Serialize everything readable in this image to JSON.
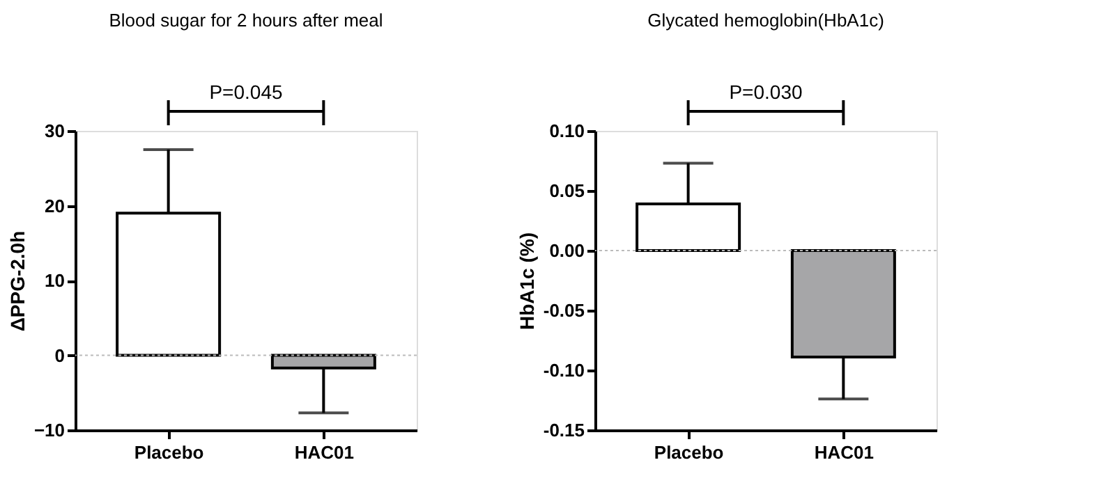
{
  "chart_data": [
    {
      "type": "bar",
      "title": "Blood sugar for 2 hours after meal",
      "ylabel": "ΔPPG-2.0h",
      "categories": [
        "Placebo",
        "HAC01"
      ],
      "values": [
        19,
        -1.7
      ],
      "colors": [
        "#ffffff",
        "#a6a6a8"
      ],
      "errors": [
        [
          19,
          27.5
        ],
        [
          -7.7,
          -1.7
        ]
      ],
      "ylim": [
        -10,
        30
      ],
      "yticks": [
        -10,
        0,
        10,
        20,
        30
      ],
      "annotations": [
        "P=0.045"
      ],
      "ref_lines": [
        {
          "axis": "y",
          "value": 0,
          "color": "#bbbbbb",
          "line_style": "dotted"
        }
      ]
    },
    {
      "type": "bar",
      "title": "Glycated hemoglobin(HbA1c)",
      "ylabel": "HbA1c (%)",
      "categories": [
        "Placebo",
        "HAC01"
      ],
      "values": [
        0.039,
        -0.089
      ],
      "colors": [
        "#ffffff",
        "#a6a6a8"
      ],
      "errors": [
        [
          0.039,
          0.073
        ],
        [
          -0.124,
          -0.089
        ]
      ],
      "ylim": [
        -0.15,
        0.1
      ],
      "yticks": [
        {
          "value": -0.15,
          "label": "-0.15"
        },
        {
          "value": -0.1,
          "label": "-0.10"
        },
        {
          "value": -0.05,
          "label": "-0.05"
        },
        {
          "value": 0,
          "label": "0.00"
        },
        {
          "value": 0.05,
          "label": "0.05"
        },
        {
          "value": 0.1,
          "label": "0.10"
        }
      ],
      "annotations": [
        "P=0.030"
      ],
      "ref_lines": [
        {
          "axis": "y",
          "value": 0,
          "color": "#bbbbbb",
          "line_style": "dotted"
        }
      ]
    }
  ]
}
